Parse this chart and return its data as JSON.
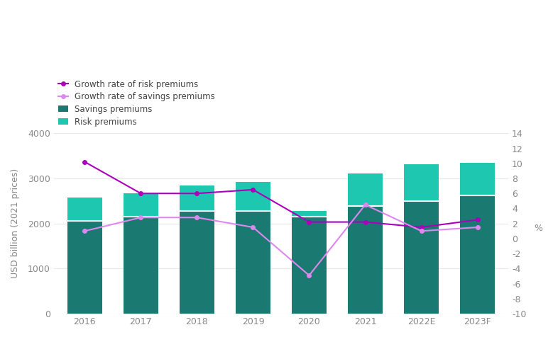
{
  "years": [
    "2016",
    "2017",
    "2018",
    "2019",
    "2020",
    "2021",
    "2022E",
    "2023F"
  ],
  "savings_premiums": [
    2060,
    2150,
    2280,
    2280,
    2150,
    2390,
    2500,
    2620
  ],
  "risk_premiums": [
    510,
    520,
    570,
    640,
    135,
    720,
    820,
    720
  ],
  "growth_rate_risk": [
    10.2,
    6.0,
    6.0,
    6.5,
    2.2,
    2.2,
    1.5,
    2.5
  ],
  "growth_rate_savings": [
    1.0,
    2.8,
    2.8,
    1.5,
    -4.9,
    4.5,
    1.0,
    1.5
  ],
  "savings_color": "#1a7a72",
  "risk_color": "#1ec8b0",
  "growth_risk_color": "#aa00bb",
  "growth_savings_color": "#dd88ee",
  "bg_color": "#ffffff",
  "ylabel_left": "USD billion (2021 prices)",
  "ylabel_right": "%",
  "ylim_left": [
    0,
    4000
  ],
  "ylim_right": [
    -10,
    14
  ],
  "yticks_left": [
    0,
    1000,
    2000,
    3000,
    4000
  ],
  "yticks_right": [
    -10,
    -8,
    -6,
    -4,
    -2,
    0,
    2,
    4,
    6,
    8,
    10,
    12,
    14
  ],
  "legend_labels": [
    "Growth rate of risk premiums",
    "Growth rate of savings premiums",
    "Savings premiums",
    "Risk premiums"
  ],
  "legend_colors": [
    "#aa00bb",
    "#dd88ee",
    "#1a7a72",
    "#1ec8b0"
  ],
  "grid_color": "#e8e8e8"
}
